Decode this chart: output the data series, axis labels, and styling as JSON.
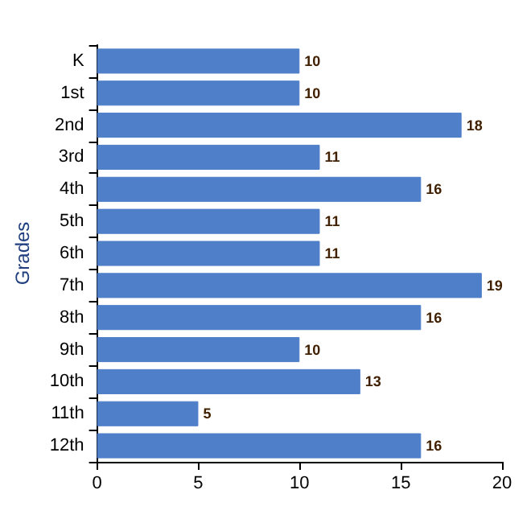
{
  "chart_data": {
    "type": "bar",
    "orientation": "horizontal",
    "ylabel": "Grades",
    "categories": [
      "K",
      "1st",
      "2nd",
      "3rd",
      "4th",
      "5th",
      "6th",
      "7th",
      "8th",
      "9th",
      "10th",
      "11th",
      "12th"
    ],
    "values": [
      10,
      10,
      18,
      11,
      16,
      11,
      11,
      19,
      16,
      10,
      13,
      5,
      16
    ],
    "color": "#4f7fc9",
    "xlim": [
      0,
      20
    ],
    "xticks": [
      0,
      5,
      10,
      15,
      20
    ],
    "data_labels": true,
    "grid": false
  }
}
